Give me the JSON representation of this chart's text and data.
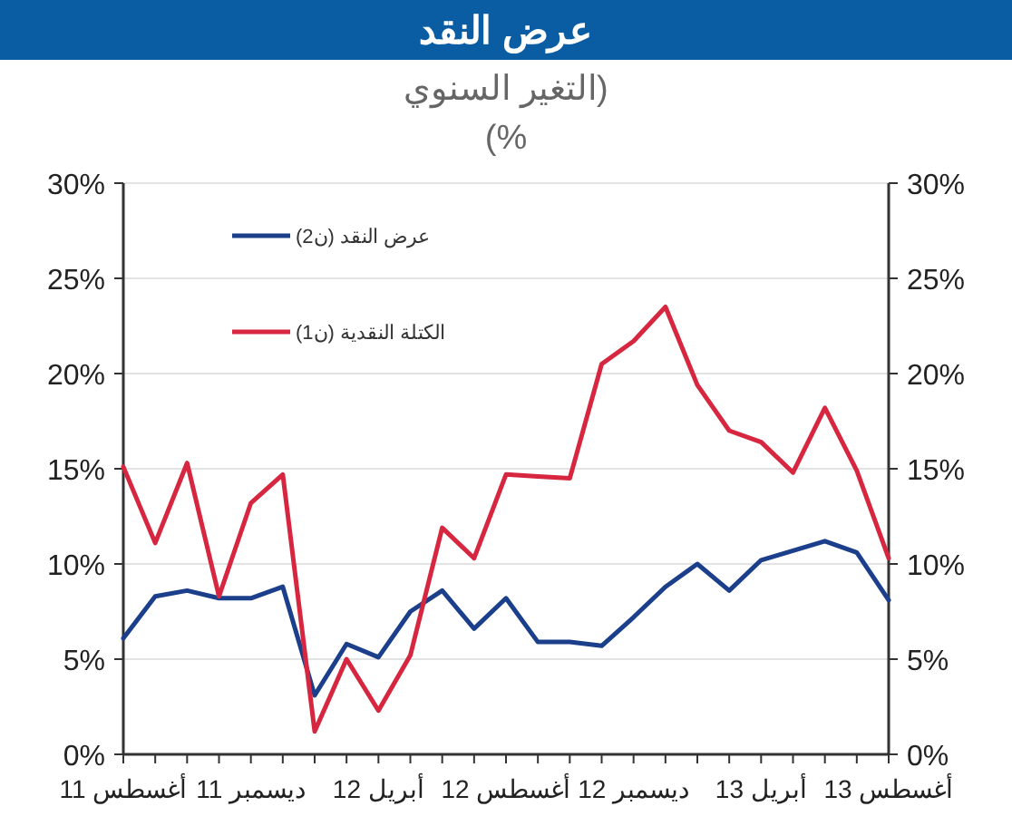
{
  "chart_data": {
    "type": "line",
    "title": "عرض النقد",
    "subtitle": "(التغير السنوي\n%)",
    "categories": [
      "أغسطس 11",
      null,
      null,
      null,
      "ديسمبر 11",
      null,
      null,
      null,
      "أبريل 12",
      null,
      null,
      null,
      "أغسطس 12",
      null,
      null,
      null,
      "ديسمبر 12",
      null,
      null,
      null,
      "أبريل 13",
      null,
      null,
      null,
      "أغسطس 13"
    ],
    "series": [
      {
        "name": "عرض النقد (ن2)",
        "color": "#1b3f8b",
        "values": [
          6.1,
          8.3,
          8.6,
          8.2,
          8.2,
          8.8,
          3.1,
          5.8,
          5.1,
          7.5,
          8.6,
          6.6,
          8.2,
          5.9,
          5.9,
          5.7,
          7.2,
          8.8,
          10.0,
          8.6,
          10.2,
          10.7,
          11.2,
          10.6,
          8.1
        ]
      },
      {
        "name": "الكتلة النقدية (ن1)",
        "color": "#d7263f",
        "values": [
          15.1,
          11.1,
          15.3,
          8.3,
          13.2,
          14.7,
          1.2,
          5.0,
          2.3,
          5.2,
          11.9,
          10.3,
          14.7,
          14.6,
          14.5,
          20.5,
          21.7,
          23.5,
          19.4,
          17.0,
          16.4,
          14.8,
          18.2,
          14.9,
          10.3
        ]
      }
    ],
    "ylim": [
      0,
      30
    ],
    "yticks": [
      {
        "value": 0,
        "label": "0%"
      },
      {
        "value": 5,
        "label": "5%"
      },
      {
        "value": 10,
        "label": "10%"
      },
      {
        "value": 15,
        "label": "15%"
      },
      {
        "value": 20,
        "label": "20%"
      },
      {
        "value": 25,
        "label": "25%"
      },
      {
        "value": 30,
        "label": "30%"
      }
    ],
    "y2lim": [
      0,
      30
    ],
    "y2ticks": [
      {
        "value": 0,
        "label": "0%"
      },
      {
        "value": 5,
        "label": "5%"
      },
      {
        "value": 10,
        "label": "10%"
      },
      {
        "value": 15,
        "label": "15%"
      },
      {
        "value": 20,
        "label": "20%"
      },
      {
        "value": 25,
        "label": "25%"
      },
      {
        "value": 30,
        "label": "30%"
      }
    ],
    "grid": "y",
    "legend": "top left",
    "marker": "none",
    "line_style": "solid"
  }
}
